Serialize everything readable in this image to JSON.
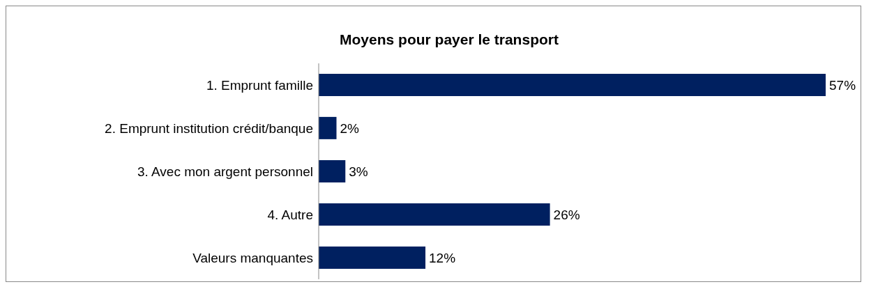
{
  "chart_data": {
    "type": "bar",
    "orientation": "horizontal",
    "title": "Moyens pour payer le transport",
    "categories": [
      "1. Emprunt famille",
      "2. Emprunt institution crédit/banque",
      "3. Avec mon argent personnel",
      "4. Autre",
      "Valeurs manquantes"
    ],
    "values": [
      57,
      2,
      3,
      26,
      12
    ],
    "value_labels": [
      "57%",
      "2%",
      "3%",
      "26%",
      "12%"
    ],
    "color": "#002060"
  }
}
